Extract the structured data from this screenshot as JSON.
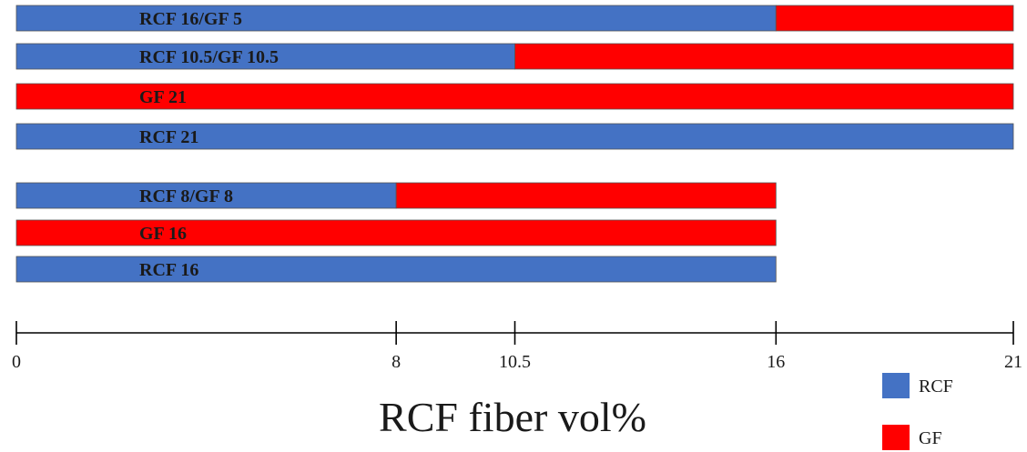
{
  "chart_data": {
    "type": "bar",
    "orientation": "horizontal",
    "stacked": true,
    "categories": [
      "RCF 16/GF 5",
      "RCF 10.5/GF 10.5",
      "GF 21",
      "RCF 21",
      "RCF 8/GF 8",
      "GF 16",
      "RCF 16"
    ],
    "series": [
      {
        "name": "RCF",
        "color": "#4472C4",
        "values": [
          16,
          10.5,
          0,
          21,
          8,
          0,
          16
        ]
      },
      {
        "name": "GF",
        "color": "#FF0000",
        "values": [
          5,
          10.5,
          21,
          0,
          8,
          16,
          0
        ]
      }
    ],
    "xlabel": "RCF fiber vol%",
    "xlim": [
      0,
      21
    ],
    "xticks": [
      0,
      8,
      10.5,
      16,
      21
    ],
    "xtick_labels": [
      "0",
      "8",
      "10.5",
      "16",
      "21"
    ],
    "grid": false,
    "legend_position": "bottom-right"
  }
}
